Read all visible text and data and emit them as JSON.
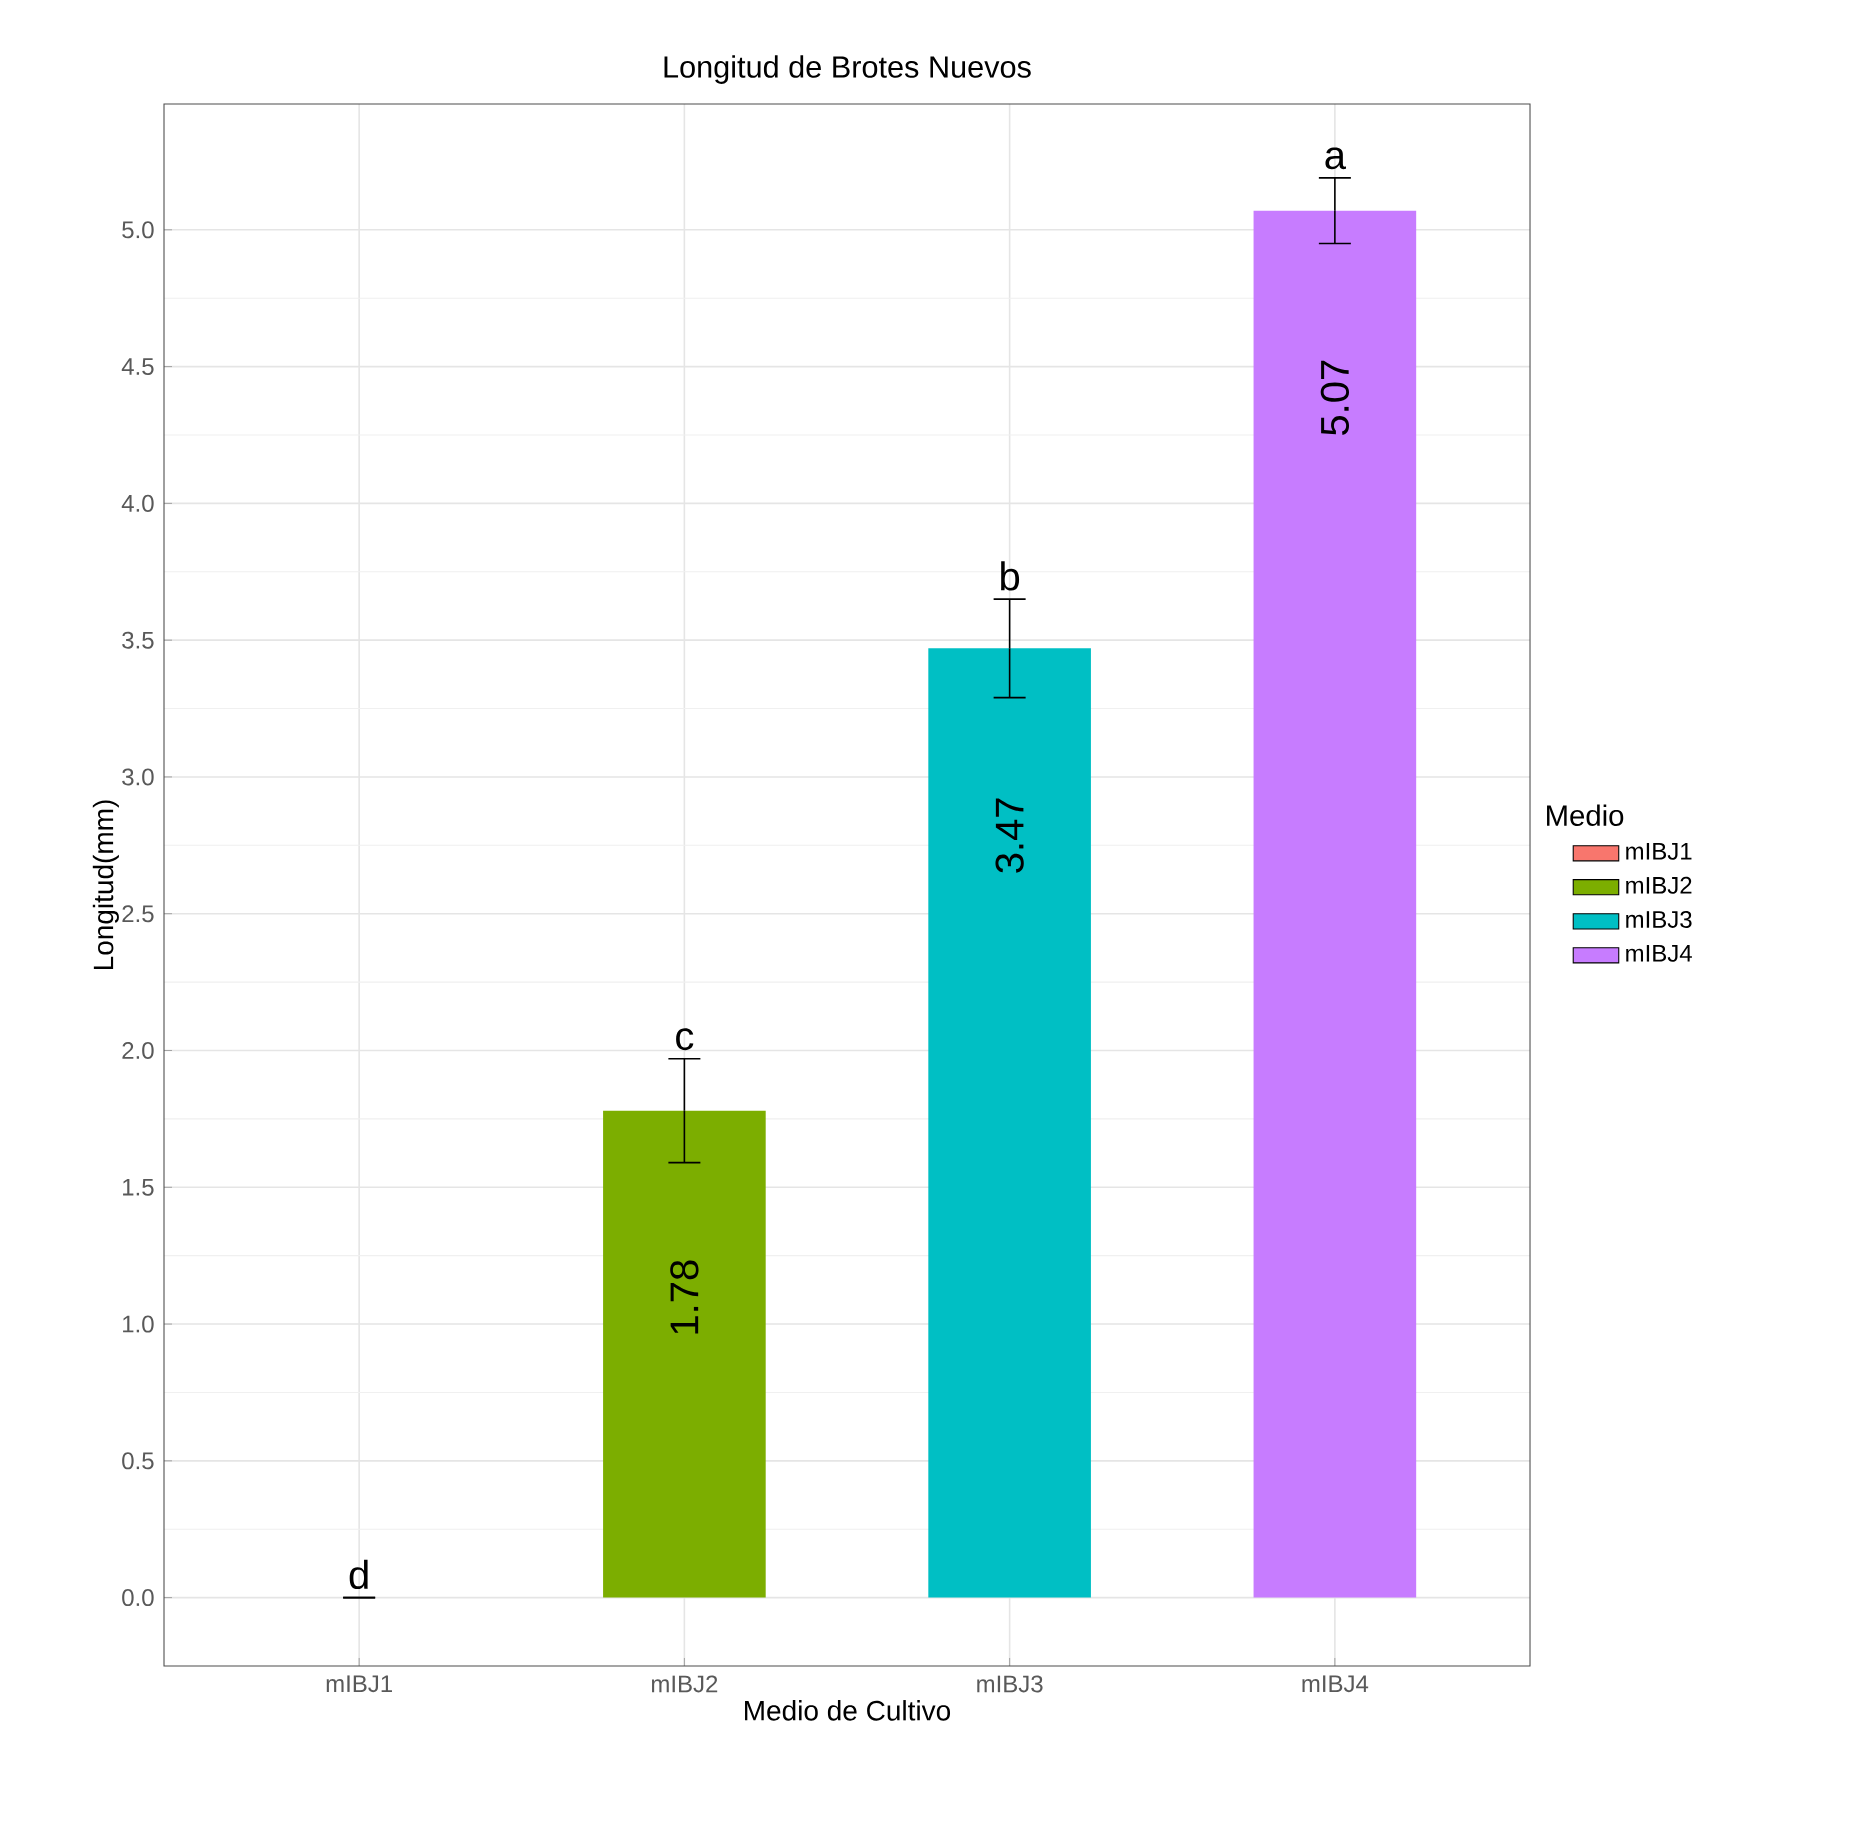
{
  "chart_data": {
    "type": "bar",
    "title": "Longitud de Brotes Nuevos",
    "xlabel": "Medio de Cultivo",
    "ylabel": "Longitud(mm)",
    "legend_title": "Medio",
    "categories": [
      "mIBJ1",
      "mIBJ2",
      "mIBJ3",
      "mIBJ4"
    ],
    "series": [
      {
        "name": "mIBJ1",
        "color": "#f8766d",
        "values": [
          0,
          null,
          null,
          null
        ],
        "errors": [
          0,
          null,
          null,
          null
        ],
        "value_labels": [
          null,
          null,
          null,
          null
        ]
      },
      {
        "name": "mIBJ2",
        "color": "#7cae00",
        "values": [
          null,
          1.78,
          null,
          null
        ],
        "errors": [
          null,
          0.19,
          null,
          null
        ],
        "value_labels": [
          null,
          "1.78",
          null,
          null
        ]
      },
      {
        "name": "mIBJ3",
        "color": "#00bfc4",
        "values": [
          null,
          null,
          3.47,
          null
        ],
        "errors": [
          null,
          null,
          0.18,
          null
        ],
        "value_labels": [
          null,
          null,
          "3.47",
          null
        ]
      },
      {
        "name": "mIBJ4",
        "color": "#c77cff",
        "values": [
          null,
          null,
          null,
          5.07
        ],
        "errors": [
          null,
          null,
          null,
          0.12
        ],
        "value_labels": [
          null,
          null,
          null,
          "5.07"
        ]
      }
    ],
    "annotations": [
      "d",
      "c",
      "b",
      "a"
    ],
    "ylim": [
      -0.25,
      5.46
    ],
    "yticks": [
      {
        "value": 0,
        "label": "0.0"
      },
      {
        "value": 0.5,
        "label": "0.5"
      },
      {
        "value": 1,
        "label": "1.0"
      },
      {
        "value": 1.5,
        "label": "1.5"
      },
      {
        "value": 2,
        "label": "2.0"
      },
      {
        "value": 2.5,
        "label": "2.5"
      },
      {
        "value": 3,
        "label": "3.0"
      },
      {
        "value": 3.5,
        "label": "3.5"
      },
      {
        "value": 4,
        "label": "4.0"
      },
      {
        "value": 4.5,
        "label": "4.5"
      },
      {
        "value": 5,
        "label": "5.0"
      }
    ],
    "grid": true,
    "legend": "right"
  }
}
